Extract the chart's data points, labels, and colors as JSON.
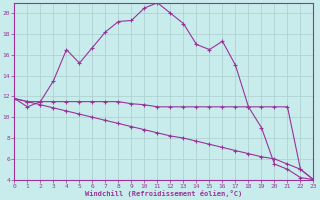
{
  "xlabel": "Windchill (Refroidissement éolien,°C)",
  "background_color": "#c8ecec",
  "grid_color": "#aacfcf",
  "line_color": "#993399",
  "xlim": [
    0,
    23
  ],
  "ylim": [
    4,
    21
  ],
  "yticks": [
    4,
    6,
    8,
    10,
    12,
    14,
    16,
    18,
    20
  ],
  "xticks": [
    0,
    1,
    2,
    3,
    4,
    5,
    6,
    7,
    8,
    9,
    10,
    11,
    12,
    13,
    14,
    15,
    16,
    17,
    18,
    19,
    20,
    21,
    22,
    23
  ],
  "curve1_x": [
    0,
    1,
    2,
    3,
    4,
    5,
    6,
    7,
    8,
    9,
    10,
    11,
    12,
    13,
    14,
    15,
    16,
    17,
    18,
    19,
    20,
    21,
    22,
    23
  ],
  "curve1_y": [
    11.8,
    11.0,
    11.5,
    13.5,
    16.5,
    15.2,
    16.7,
    18.2,
    19.2,
    19.3,
    20.5,
    21.0,
    20.0,
    19.0,
    17.0,
    16.5,
    17.3,
    15.0,
    11.0,
    9.0,
    5.5,
    5.0,
    4.2,
    4.0
  ],
  "curve2_x": [
    0,
    1,
    2,
    3,
    4,
    5,
    6,
    7,
    8,
    9,
    10,
    11,
    12,
    13,
    14,
    15,
    16,
    17,
    18,
    19,
    20,
    21,
    22,
    23
  ],
  "curve2_y": [
    11.8,
    11.5,
    11.5,
    11.5,
    11.5,
    11.5,
    11.5,
    11.5,
    11.5,
    11.3,
    11.2,
    11.0,
    11.0,
    11.0,
    11.0,
    11.0,
    11.0,
    11.0,
    11.0,
    11.0,
    11.0,
    11.0,
    5.0,
    4.0
  ],
  "curve3_x": [
    0,
    1,
    2,
    3,
    4,
    5,
    6,
    7,
    8,
    9,
    10,
    11,
    12,
    13,
    14,
    15,
    16,
    17,
    18,
    19,
    20,
    21,
    22,
    23
  ],
  "curve3_y": [
    11.8,
    11.5,
    11.2,
    10.9,
    10.6,
    10.3,
    10.0,
    9.7,
    9.4,
    9.1,
    8.8,
    8.5,
    8.2,
    8.0,
    7.7,
    7.4,
    7.1,
    6.8,
    6.5,
    6.2,
    6.0,
    5.5,
    5.0,
    4.0
  ]
}
